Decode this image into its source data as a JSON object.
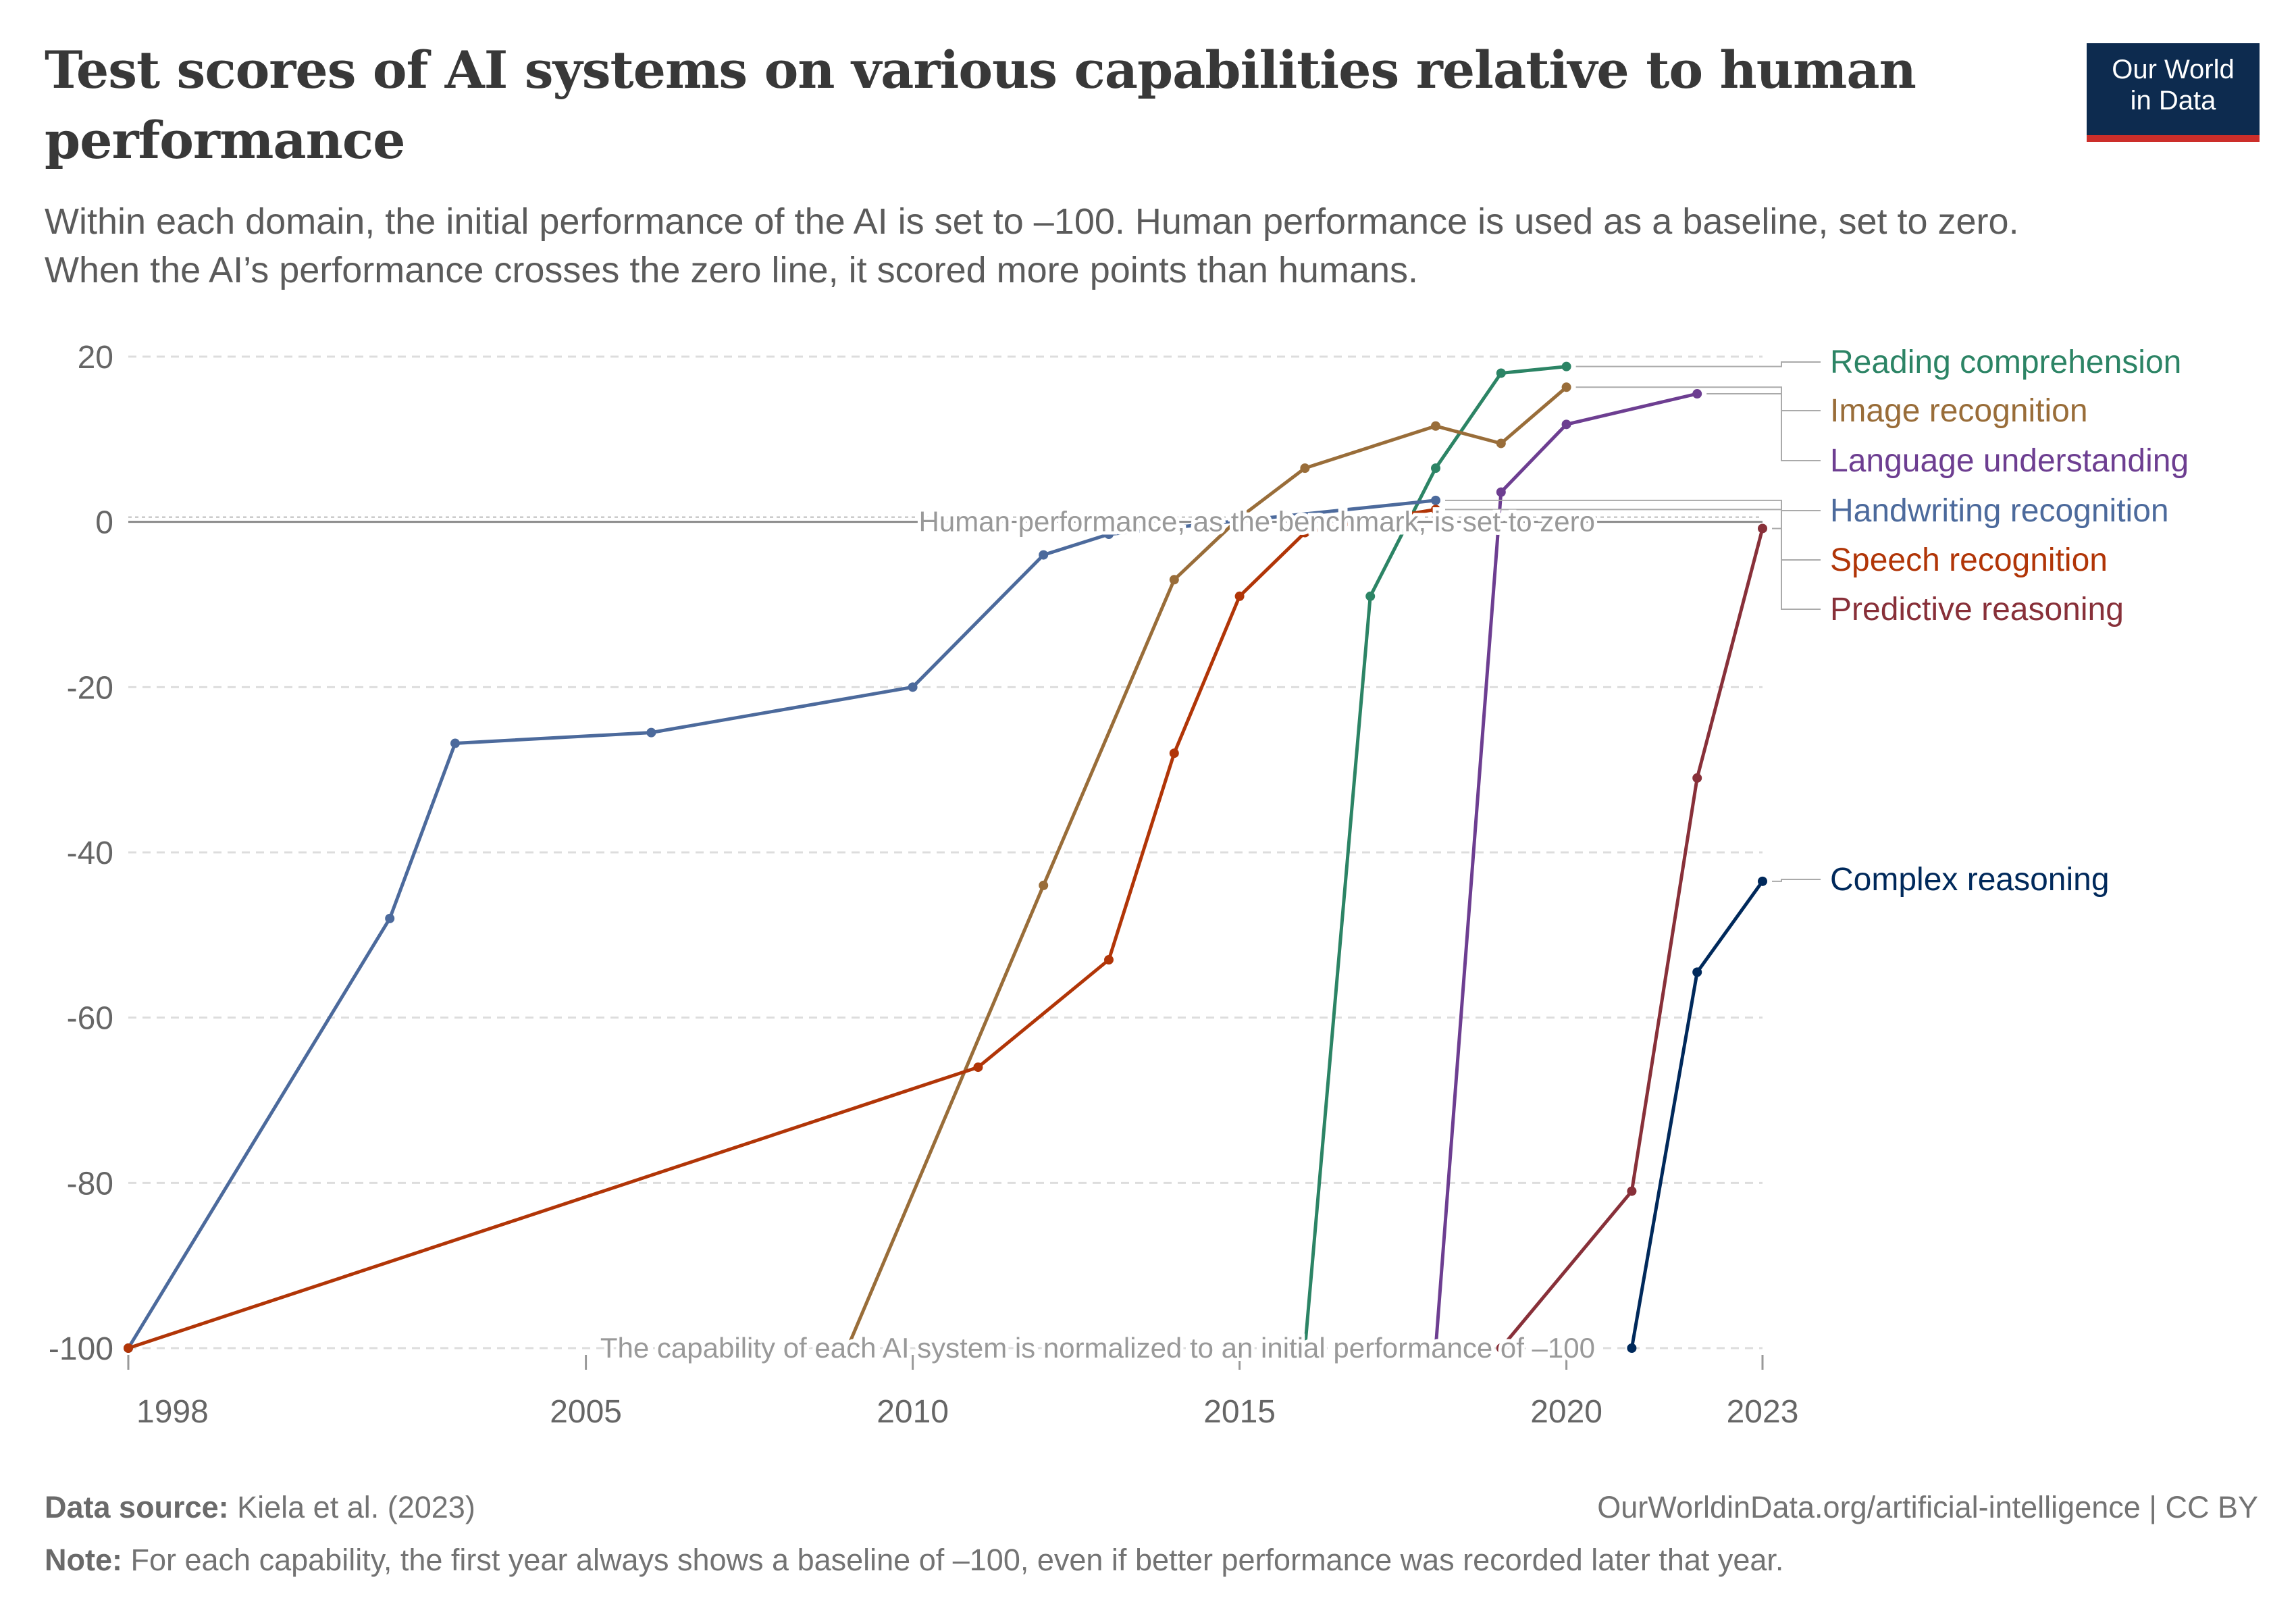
{
  "header": {
    "title": "Test scores of AI systems on various capabilities relative to human performance",
    "subtitle_line1": "Within each domain, the initial performance of the AI is set to –100. Human performance is used as a baseline, set to zero.",
    "subtitle_line2": "When the AI’s performance crosses the zero line, it scored more points than humans.",
    "logo_line1": "Our World",
    "logo_line2": "in Data"
  },
  "footer": {
    "source_label": "Data source:",
    "source_text": "Kiela et al. (2023)",
    "url": "OurWorldinData.org/artificial-intelligence | CC BY",
    "note_label": "Note:",
    "note_text": "For each capability, the first year always shows a baseline of –100, even if better performance was recorded later that year."
  },
  "colors": {
    "grid": "#dddddd",
    "axis_text": "#666666",
    "annotation": "#999999",
    "brand_navy": "#0d2b4f",
    "brand_red": "#cc2e2a"
  },
  "chart_data": {
    "type": "line",
    "title": "Test scores of AI systems on various capabilities relative to human performance",
    "xlim": [
      1998,
      2023
    ],
    "ylim": [
      -100,
      20
    ],
    "x_ticks": [
      1998,
      2005,
      2010,
      2015,
      2020,
      2023
    ],
    "x_tick_labels": [
      "1998",
      "2005",
      "2010",
      "2015",
      "2020",
      "2023"
    ],
    "y_ticks": [
      20,
      0,
      -20,
      -40,
      -60,
      -80,
      -100
    ],
    "y_tick_labels": [
      "20",
      "0",
      "-20",
      "-40",
      "-60",
      "-80",
      "-100"
    ],
    "grid": "horizontal dashed",
    "legend": "right, line labels",
    "annotations": [
      {
        "text": "Human performance, as the benchmark, is set to zero",
        "y": 0
      },
      {
        "text": "The capability of each AI system is normalized to an initial performance of –100",
        "y": -100
      }
    ],
    "series": [
      {
        "name": "Reading comprehension",
        "color": "#2c8465",
        "x": [
          2016,
          2017,
          2018,
          2019,
          2020
        ],
        "y": [
          -100,
          -9,
          6.5,
          18,
          18.8
        ]
      },
      {
        "name": "Image recognition",
        "color": "#996d39",
        "x": [
          2009,
          2012,
          2014,
          2015,
          2016,
          2018,
          2019,
          2020
        ],
        "y": [
          -100,
          -44,
          -7,
          0.5,
          6.5,
          11.6,
          9.5,
          16.3
        ]
      },
      {
        "name": "Language understanding",
        "color": "#6d3e91",
        "x": [
          2018,
          2019,
          2020,
          2022
        ],
        "y": [
          -100,
          3.6,
          11.8,
          15.5
        ]
      },
      {
        "name": "Handwriting recognition",
        "color": "#4c6a9c",
        "x": [
          1998,
          2002,
          2003,
          2006,
          2010,
          2012,
          2013,
          2018
        ],
        "y": [
          -100,
          -48,
          -26.8,
          -25.5,
          -20,
          -4,
          -1.5,
          2.6
        ]
      },
      {
        "name": "Speech recognition",
        "color": "#b13507",
        "x": [
          1998,
          2011,
          2013,
          2014,
          2015,
          2016,
          2017,
          2018
        ],
        "y": [
          -100,
          -66,
          -53,
          -28,
          -9,
          -1.3,
          0.2,
          1.5
        ]
      },
      {
        "name": "Predictive reasoning",
        "color": "#883039",
        "x": [
          2019,
          2021,
          2022,
          2023
        ],
        "y": [
          -100,
          -81,
          -31,
          -0.8
        ]
      },
      {
        "name": "Complex reasoning",
        "color": "#00295b",
        "x": [
          2021,
          2022,
          2023
        ],
        "y": [
          -100,
          -54.5,
          -43.5
        ]
      }
    ]
  }
}
